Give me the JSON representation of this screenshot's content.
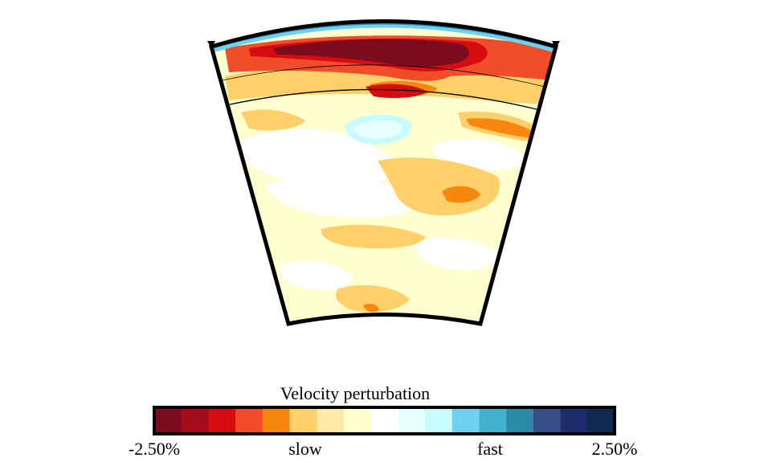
{
  "colorbar": {
    "title": "Velocity perturbation",
    "min_label": "-2.50%",
    "slow_label": "slow",
    "fast_label": "fast",
    "max_label": "2.50%",
    "range": [
      -2.5,
      2.5
    ],
    "unit": "%",
    "colors": [
      "#7a0c1e",
      "#a30d1a",
      "#d60d10",
      "#f24d2a",
      "#f7870f",
      "#fdd06a",
      "#feeaa7",
      "#ffffcf",
      "#ffffff",
      "#e6ffff",
      "#c8fbff",
      "#6fd0ef",
      "#44b0d0",
      "#2d8aa6",
      "#3a4f86",
      "#1e2c6e",
      "#0f2a4f"
    ]
  },
  "section": {
    "palette": {
      "darkest_slow": "#7a0c1e",
      "strong_slow": "#d60d10",
      "slow": "#f24d2a",
      "moderate_slow": "#f7870f",
      "mild_slow": "#fdd06a",
      "weak_slow": "#feeaa7",
      "faint_slow": "#ffffcf",
      "neutral": "#ffffff",
      "faint_fast": "#e6ffff",
      "weak_fast": "#c8fbff",
      "fast": "#6fd0ef",
      "strong_fast": "#2d8aa6"
    }
  }
}
